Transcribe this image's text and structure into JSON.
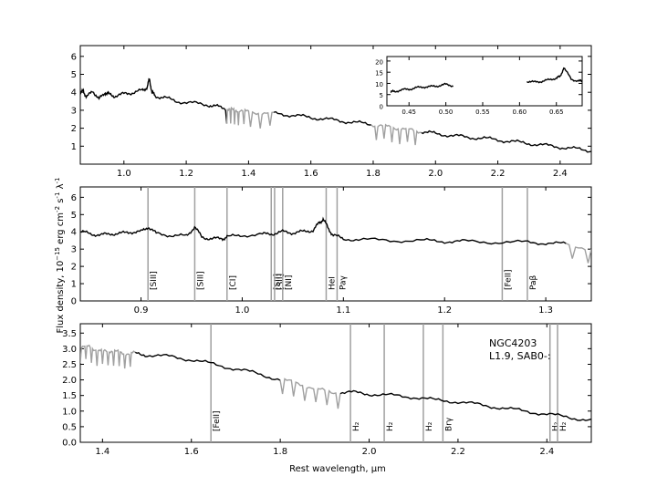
{
  "figure": {
    "xlabel": "Rest wavelength, μm",
    "ylabel": "Flux density, 10",
    "ylabel_exp": "−15",
    "ylabel_unit_a": " erg  cm",
    "ylabel_unit_b": "  s",
    "ylabel_unit_c": "  λ",
    "annotation_line1": "NGC4203",
    "annotation_line2": "L1.9,  SAB0-:"
  },
  "colors": {
    "spectrum": "#000000",
    "masked": "#a0a0a0",
    "line_marker": "#a0a0a0"
  },
  "chart_data": [
    {
      "type": "line",
      "panel": "top",
      "xlim": [
        0.86,
        2.5
      ],
      "ylim": [
        0,
        6.6
      ],
      "xticks": [
        1.0,
        1.2,
        1.4,
        1.6,
        1.8,
        2.0,
        2.2,
        2.4
      ],
      "xtick_labels": [
        "1.0",
        "1.2",
        "1.4",
        "1.6",
        "1.8",
        "2.0",
        "2.2",
        "2.4"
      ],
      "yticks": [
        1,
        2,
        3,
        4,
        5,
        6
      ],
      "ytick_labels": [
        "1",
        "2",
        "3",
        "4",
        "5",
        "6"
      ],
      "masked_ranges": [
        [
          1.33,
          1.48
        ],
        [
          1.79,
          1.95
        ]
      ],
      "series": [
        {
          "x": [
            0.86,
            0.87,
            0.88,
            0.9,
            0.92,
            0.94,
            0.95,
            0.97,
            1.0,
            1.03,
            1.06,
            1.075,
            1.082,
            1.09,
            1.1,
            1.13,
            1.17,
            1.22,
            1.27,
            1.3,
            1.33,
            1.35,
            1.37,
            1.4,
            1.45,
            1.5,
            1.55,
            1.6,
            1.65,
            1.7,
            1.75,
            1.8,
            1.84,
            1.88,
            1.92,
            1.96,
            2.0,
            2.05,
            2.1,
            2.15,
            2.2,
            2.25,
            2.3,
            2.35,
            2.4,
            2.45,
            2.5
          ],
          "y": [
            3.9,
            4.1,
            3.7,
            4.1,
            3.6,
            4.0,
            3.9,
            3.8,
            3.9,
            4.0,
            4.1,
            4.3,
            4.75,
            4.0,
            3.8,
            3.7,
            3.5,
            3.4,
            3.3,
            3.2,
            3.1,
            3.0,
            3.0,
            2.9,
            2.85,
            2.8,
            2.7,
            2.6,
            2.5,
            2.4,
            2.3,
            2.2,
            2.1,
            2.0,
            1.9,
            1.8,
            1.7,
            1.6,
            1.5,
            1.45,
            1.35,
            1.25,
            1.15,
            1.05,
            0.95,
            0.85,
            0.75
          ]
        }
      ],
      "inset": {
        "xlim": [
          0.42,
          0.685
        ],
        "ylim": [
          0,
          22
        ],
        "xticks": [
          0.45,
          0.5,
          0.55,
          0.6,
          0.65
        ],
        "xtick_labels": [
          "0.45",
          "0.50",
          "0.55",
          "0.60",
          "0.65"
        ],
        "yticks": [
          0,
          5,
          10,
          15,
          20
        ],
        "ytick_labels": [
          "0",
          "5",
          "10",
          "15",
          "20"
        ],
        "series": [
          {
            "x": [
              0.425,
              0.43,
              0.44,
              0.45,
              0.46,
              0.47,
              0.48,
              0.49,
              0.5,
              0.51
            ],
            "y": [
              6.0,
              6.5,
              7.0,
              7.5,
              8.0,
              8.5,
              8.5,
              9.0,
              9.5,
              9.0
            ]
          },
          {
            "x": [
              0.61,
              0.62,
              0.63,
              0.64,
              0.65,
              0.655,
              0.66,
              0.67,
              0.68,
              0.685
            ],
            "y": [
              11.0,
              10.5,
              11.0,
              11.5,
              12.5,
              13.0,
              17.0,
              12.0,
              11.0,
              11.0
            ]
          }
        ]
      }
    },
    {
      "type": "line",
      "panel": "middle",
      "xlim": [
        0.84,
        1.345
      ],
      "ylim": [
        0,
        6.6
      ],
      "xticks": [
        0.9,
        1.0,
        1.1,
        1.2,
        1.3
      ],
      "xtick_labels": [
        "0.9",
        "1.0",
        "1.1",
        "1.2",
        "1.3"
      ],
      "yticks": [
        0,
        1,
        2,
        3,
        4,
        5,
        6
      ],
      "ytick_labels": [
        "0",
        "1",
        "2",
        "3",
        "4",
        "5",
        "6"
      ],
      "masked_ranges": [
        [
          1.32,
          1.345
        ]
      ],
      "series": [
        {
          "x": [
            0.84,
            0.85,
            0.86,
            0.87,
            0.88,
            0.89,
            0.9,
            0.907,
            0.915,
            0.93,
            0.945,
            0.953,
            0.96,
            0.97,
            0.98,
            0.985,
            1.0,
            1.02,
            1.03,
            1.04,
            1.05,
            1.06,
            1.07,
            1.076,
            1.08,
            1.085,
            1.09,
            1.1,
            1.12,
            1.15,
            1.18,
            1.2,
            1.22,
            1.25,
            1.28,
            1.3,
            1.32,
            1.345
          ],
          "y": [
            4.0,
            3.9,
            3.8,
            3.9,
            3.9,
            4.0,
            4.0,
            4.3,
            3.9,
            3.8,
            3.75,
            4.3,
            3.7,
            3.6,
            3.6,
            3.7,
            3.8,
            3.85,
            3.9,
            4.0,
            3.95,
            4.0,
            4.1,
            4.5,
            4.75,
            4.2,
            3.8,
            3.6,
            3.55,
            3.5,
            3.5,
            3.45,
            3.45,
            3.4,
            3.4,
            3.35,
            3.3,
            3.0
          ]
        }
      ],
      "line_markers": [
        {
          "x": 0.9069,
          "label": "[SIII]"
        },
        {
          "x": 0.9531,
          "label": "[SIII]"
        },
        {
          "x": 0.985,
          "label": "[CI]"
        },
        {
          "x": 1.0287,
          "label": "[SII]"
        },
        {
          "x": 1.032,
          "label": "[SII]"
        },
        {
          "x": 1.04,
          "label": "[NI]"
        },
        {
          "x": 1.083,
          "label": "HeI"
        },
        {
          "x": 1.0938,
          "label": "Paγ"
        },
        {
          "x": 1.257,
          "label": "[FeII]"
        },
        {
          "x": 1.2818,
          "label": "Paβ"
        }
      ]
    },
    {
      "type": "line",
      "panel": "bottom",
      "xlim": [
        1.35,
        2.5
      ],
      "ylim": [
        0,
        3.8
      ],
      "xticks": [
        1.4,
        1.6,
        1.8,
        2.0,
        2.2,
        2.4
      ],
      "xtick_labels": [
        "1.4",
        "1.6",
        "1.8",
        "2.0",
        "2.2",
        "2.4"
      ],
      "yticks": [
        0.0,
        0.5,
        1.0,
        1.5,
        2.0,
        2.5,
        3.0,
        3.5
      ],
      "ytick_labels": [
        "0.0",
        "0.5",
        "1.0",
        "1.5",
        "2.0",
        "2.5",
        "3.0",
        "3.5"
      ],
      "masked_ranges": [
        [
          1.35,
          1.47
        ],
        [
          1.8,
          1.93
        ]
      ],
      "series": [
        {
          "x": [
            1.35,
            1.37,
            1.39,
            1.41,
            1.43,
            1.45,
            1.47,
            1.5,
            1.55,
            1.6,
            1.65,
            1.7,
            1.75,
            1.8,
            1.84,
            1.88,
            1.92,
            1.96,
            2.0,
            2.05,
            2.1,
            2.15,
            2.2,
            2.25,
            2.3,
            2.35,
            2.4,
            2.45,
            2.5
          ],
          "y": [
            3.0,
            3.1,
            2.9,
            2.95,
            2.9,
            2.85,
            2.85,
            2.8,
            2.75,
            2.65,
            2.5,
            2.35,
            2.2,
            2.0,
            1.9,
            1.7,
            1.6,
            1.6,
            1.55,
            1.5,
            1.45,
            1.35,
            1.3,
            1.2,
            1.1,
            1.0,
            0.9,
            0.8,
            0.7
          ]
        }
      ],
      "line_markers": [
        {
          "x": 1.644,
          "label": "[FeII]"
        },
        {
          "x": 1.958,
          "label": "H₂"
        },
        {
          "x": 2.034,
          "label": "H₂"
        },
        {
          "x": 2.122,
          "label": "H₂"
        },
        {
          "x": 2.166,
          "label": "Brγ"
        },
        {
          "x": 2.407,
          "label": "H₂"
        },
        {
          "x": 2.424,
          "label": "H₂"
        }
      ]
    }
  ]
}
